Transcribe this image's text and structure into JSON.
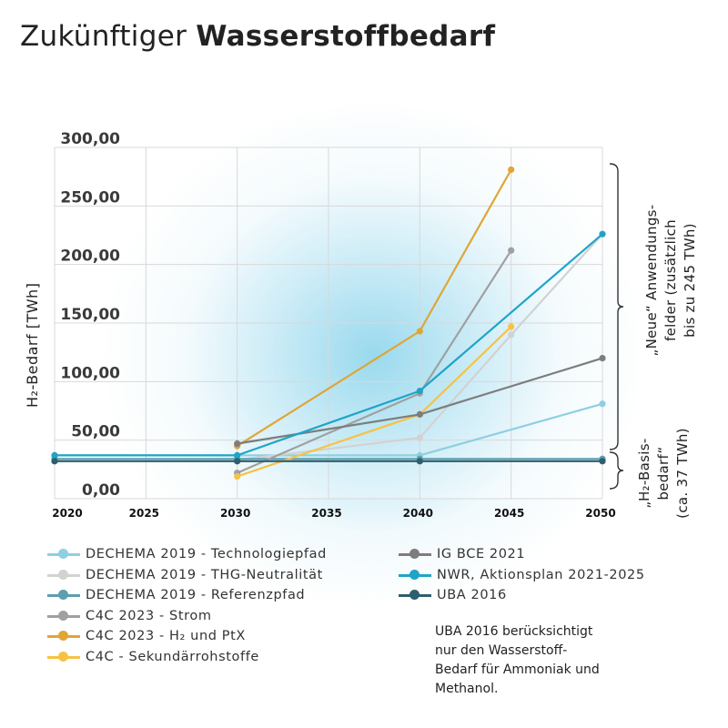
{
  "title": {
    "light": "Zukünftiger",
    "bold": "Wasserstoffbedarf"
  },
  "note": "UBA 2016 berücksichtigt\nnur den Wasserstoff-\nBedarf für Ammoniak und\nMethanol.",
  "annotations": {
    "neue": "„Neue“ Anwendungs-\nfelder (zusätzlich\nbis zu 245 TWh)",
    "basis": "„H₂-Basis-\nbedarf“\n(ca. 37 TWh)"
  },
  "chart_data": {
    "type": "line",
    "title": "Zukünftiger Wasserstoffbedarf",
    "xlabel": "",
    "ylabel": "H₂-Bedarf [TWh]",
    "x_ticks": [
      "2020",
      "2025",
      "2030",
      "2035",
      "2040",
      "2045",
      "2050"
    ],
    "y_ticks": [
      "0,00",
      "50,00",
      "100,00",
      "150,00",
      "200,00",
      "250,00",
      "300,00"
    ],
    "xlim": [
      2020,
      2050
    ],
    "ylim": [
      0,
      300
    ],
    "grid": true,
    "legend_position": "bottom",
    "series": [
      {
        "name": "DECHEMA 2019 - Technologiepfad",
        "color": "#8ecfe0",
        "points": [
          [
            2020,
            37
          ],
          [
            2030,
            37
          ],
          [
            2040,
            37
          ],
          [
            2050,
            81
          ]
        ]
      },
      {
        "name": "DECHEMA 2019 - THG-Neutralität",
        "color": "#d2d2d2",
        "points": [
          [
            2030,
            33
          ],
          [
            2040,
            52
          ],
          [
            2045,
            140
          ],
          [
            2050,
            226
          ]
        ]
      },
      {
        "name": "DECHEMA 2019 - Referenzpfad",
        "color": "#5c9fae",
        "points": [
          [
            2020,
            34
          ],
          [
            2030,
            34
          ],
          [
            2040,
            34
          ],
          [
            2050,
            34
          ]
        ]
      },
      {
        "name": "C4C 2023 - Strom",
        "color": "#a0a0a0",
        "points": [
          [
            2030,
            22
          ],
          [
            2040,
            90
          ],
          [
            2045,
            212
          ]
        ]
      },
      {
        "name": "C4C 2023 - H₂ und PtX",
        "color": "#dfa637",
        "points": [
          [
            2030,
            45
          ],
          [
            2040,
            143
          ],
          [
            2045,
            281
          ]
        ]
      },
      {
        "name": "C4C - Sekundärrohstoffe",
        "color": "#f7c244",
        "points": [
          [
            2030,
            19
          ],
          [
            2040,
            72
          ],
          [
            2045,
            147
          ]
        ]
      },
      {
        "name": "IG BCE 2021",
        "color": "#7d7d7d",
        "points": [
          [
            2030,
            47
          ],
          [
            2040,
            72
          ],
          [
            2050,
            120
          ]
        ]
      },
      {
        "name": "NWR, Aktionsplan 2021-2025",
        "color": "#1fa4c8",
        "points": [
          [
            2020,
            37
          ],
          [
            2030,
            37
          ],
          [
            2040,
            92
          ],
          [
            2050,
            226
          ]
        ]
      },
      {
        "name": "UBA 2016",
        "color": "#2e5f6e",
        "points": [
          [
            2020,
            32
          ],
          [
            2030,
            32
          ],
          [
            2040,
            32
          ],
          [
            2050,
            32
          ]
        ]
      }
    ],
    "legend_columns": [
      [
        0,
        1,
        2,
        3,
        4,
        5
      ],
      [
        6,
        7,
        8
      ]
    ]
  }
}
